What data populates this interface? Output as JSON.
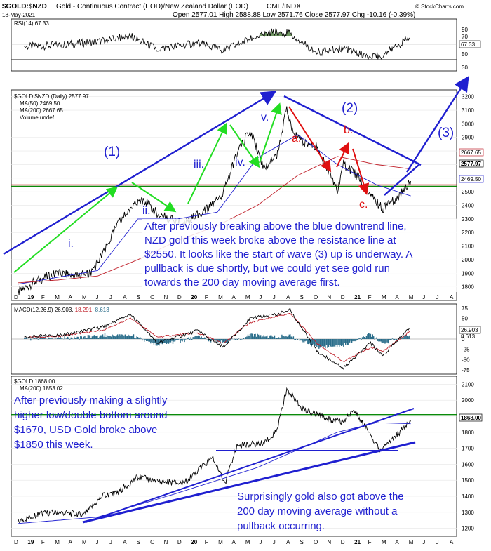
{
  "header": {
    "symbol": "$GOLD:$NZD",
    "name": "Gold - Continuous Contract (EOD)/New Zealand Dollar (EOD)",
    "exchange": "CME/INDX",
    "copyright": "© StockCharts.com",
    "date": "18-May-2021",
    "ohlc": "Open 2577.01  High 2588.88  Low 2571.76  Close 2577.97  Chg -10.16 (-0.39%)"
  },
  "rsi": {
    "label": "RSI(14) 67.33",
    "current_label": "67.33",
    "ticks": [
      "90",
      "70",
      "50",
      "30"
    ]
  },
  "main": {
    "legend_title": "$GOLD:$NZD (Daily) 2577.97",
    "legend_ma50": "MA(50) 2469.50",
    "legend_ma200": "MA(200) 2667.65",
    "legend_volume": "Volume undef",
    "ticks": [
      "3200",
      "3100",
      "3000",
      "2900",
      "2800",
      "2700",
      "2600",
      "2500",
      "2400",
      "2300",
      "2200",
      "2100",
      "2000",
      "1900",
      "1800"
    ],
    "price_labels": [
      "2667.65",
      "2577.97",
      "2469.50"
    ],
    "wave_labels": [
      "(1)",
      "(2)",
      "(3)"
    ],
    "sub_wave_labels": [
      "i.",
      "ii.",
      "iii.",
      "iv.",
      "v.",
      "a.",
      "b.",
      "c."
    ],
    "annotation": "After previously breaking above the blue downtrend line, NZD gold this week broke above the resistance line at $2550. It looks like the start of wave (3) up is underway. A pullback is due shortly, but we could yet see gold run towards the 200 day moving average first.",
    "annotation_lines": [
      "After previously breaking above the blue downtrend line,",
      "NZD gold this week broke above the resistance line at",
      "$2550. It looks like the start of wave (3) up is underway. A",
      "pullback is due shortly, but we could yet see gold run",
      "towards the 200 day moving average first."
    ]
  },
  "macd": {
    "label_prefix": "MACD(12,26,9)",
    "v1": "26.903",
    "v2": "18.291",
    "v3": "8.613",
    "ticks": [
      "75",
      "50",
      "25",
      "0",
      "-25",
      "-50",
      "-75"
    ],
    "current_labels": [
      "26.903",
      "8.613"
    ]
  },
  "usd": {
    "legend_title": "$GOLD 1868.00",
    "legend_ma200": "MA(200) 1853.02",
    "ticks": [
      "2100",
      "2000",
      "1900",
      "1800",
      "1700",
      "1600",
      "1500",
      "1400",
      "1300",
      "1200"
    ],
    "price_label": "1868.00",
    "annotation1_lines": [
      "After previously making a slightly",
      "higher low/double bottom around",
      "$1670, USD Gold broke above",
      "$1850 this week."
    ],
    "annotation2_lines": [
      "Surprisingly gold also got above the",
      "200 day moving average without a",
      "pullback occurring."
    ]
  },
  "months": [
    "D",
    "19",
    "F",
    "M",
    "A",
    "M",
    "J",
    "J",
    "A",
    "S",
    "O",
    "N",
    "D",
    "20",
    "F",
    "M",
    "A",
    "M",
    "J",
    "J",
    "A",
    "S",
    "O",
    "N",
    "D",
    "21",
    "F",
    "M",
    "A",
    "M",
    "J",
    "J",
    "A"
  ],
  "colors": {
    "price": "#000000",
    "ma50": "#1f1fd0",
    "ma200": "#c0202a",
    "resistance": "#d01818",
    "support": "#0a8a0a",
    "annotation": "#1f1fd0",
    "wave_green": "#22dd22",
    "wave_red": "#e01010",
    "macd_hist": "#2a6d8a"
  },
  "chart_data": [
    {
      "type": "line",
      "title": "RSI(14)",
      "ylim": [
        10,
        100
      ],
      "ref_lines": [
        70,
        30
      ],
      "series": [
        {
          "name": "RSI(14)",
          "x": [
            "2018-12",
            "2019-03",
            "2019-06",
            "2019-08",
            "2019-10",
            "2020-01",
            "2020-03",
            "2020-05",
            "2020-07",
            "2020-08",
            "2020-10",
            "2020-12",
            "2021-02",
            "2021-03",
            "2021-05"
          ],
          "values": [
            52,
            55,
            62,
            70,
            48,
            58,
            45,
            66,
            78,
            74,
            42,
            50,
            32,
            38,
            67.33
          ]
        }
      ]
    },
    {
      "type": "line",
      "title": "$GOLD:$NZD (Daily)",
      "ylim": [
        1700,
        3250
      ],
      "reference_lines": [
        {
          "value": 2550,
          "color": "red"
        },
        {
          "value": 2540,
          "color": "green"
        }
      ],
      "series": [
        {
          "name": "$GOLD:$NZD",
          "x": [
            "2018-12-01",
            "2019-01-15",
            "2019-03-01",
            "2019-04-15",
            "2019-05-15",
            "2019-06-15",
            "2019-07-15",
            "2019-08-15",
            "2019-09-15",
            "2019-10-15",
            "2019-11-15",
            "2019-12-15",
            "2020-01-15",
            "2020-02-15",
            "2020-03-15",
            "2020-04-15",
            "2020-05-15",
            "2020-06-15",
            "2020-07-15",
            "2020-08-07",
            "2020-08-20",
            "2020-09-15",
            "2020-10-15",
            "2020-11-15",
            "2020-12-01",
            "2020-12-15",
            "2021-01-15",
            "2021-02-15",
            "2021-03-15",
            "2021-04-15",
            "2021-05-18"
          ],
          "values": [
            1760,
            1850,
            1900,
            1880,
            1900,
            2050,
            2250,
            2380,
            2440,
            2340,
            2300,
            2260,
            2330,
            2390,
            2500,
            2780,
            2950,
            2680,
            2760,
            3120,
            2950,
            2860,
            2830,
            2620,
            2500,
            2700,
            2620,
            2470,
            2370,
            2450,
            2577.97
          ]
        },
        {
          "name": "MA(50)",
          "x": [
            "2018-12-01",
            "2019-03-01",
            "2019-06-01",
            "2019-09-01",
            "2019-12-01",
            "2020-03-01",
            "2020-06-01",
            "2020-09-01",
            "2020-12-01",
            "2021-03-01",
            "2021-05-18"
          ],
          "values": [
            1820,
            1870,
            1920,
            2300,
            2300,
            2350,
            2750,
            2920,
            2700,
            2550,
            2469.5
          ]
        },
        {
          "name": "MA(200)",
          "x": [
            "2018-12-01",
            "2019-03-01",
            "2019-06-01",
            "2019-09-01",
            "2019-12-01",
            "2020-03-01",
            "2020-06-01",
            "2020-09-01",
            "2020-12-01",
            "2021-03-01",
            "2021-05-18"
          ],
          "values": [
            1830,
            1850,
            1880,
            2000,
            2140,
            2250,
            2400,
            2620,
            2760,
            2700,
            2667.65
          ]
        }
      ]
    },
    {
      "type": "line",
      "title": "MACD(12,26,9)",
      "ylim": [
        -85,
        85
      ],
      "series": [
        {
          "name": "MACD",
          "x": [
            "2018-12",
            "2019-03",
            "2019-06",
            "2019-08",
            "2019-10",
            "2020-01",
            "2020-03",
            "2020-05",
            "2020-07",
            "2020-08",
            "2020-10",
            "2020-12",
            "2021-02",
            "2021-03",
            "2021-05"
          ],
          "values": [
            5,
            10,
            30,
            60,
            -10,
            20,
            -20,
            50,
            60,
            70,
            -30,
            -70,
            -10,
            -40,
            26.903
          ]
        },
        {
          "name": "Signal",
          "x": [
            "2018-12",
            "2019-03",
            "2019-06",
            "2019-08",
            "2019-10",
            "2020-01",
            "2020-03",
            "2020-05",
            "2020-07",
            "2020-08",
            "2020-10",
            "2020-12",
            "2021-02",
            "2021-03",
            "2021-05"
          ],
          "values": [
            3,
            8,
            22,
            50,
            5,
            15,
            -10,
            40,
            55,
            62,
            -10,
            -55,
            -20,
            -30,
            18.291
          ]
        }
      ]
    },
    {
      "type": "line",
      "title": "$GOLD",
      "ylim": [
        1150,
        2150
      ],
      "reference_lines": [
        {
          "value": 1910,
          "color": "green"
        },
        {
          "value": 1670,
          "color": "blue"
        }
      ],
      "series": [
        {
          "name": "$GOLD",
          "x": [
            "2018-12-01",
            "2019-01-15",
            "2019-03-01",
            "2019-05-01",
            "2019-06-15",
            "2019-07-15",
            "2019-09-01",
            "2019-10-15",
            "2019-12-15",
            "2020-01-15",
            "2020-02-20",
            "2020-03-19",
            "2020-04-15",
            "2020-06-15",
            "2020-07-15",
            "2020-08-07",
            "2020-09-15",
            "2020-11-15",
            "2020-12-15",
            "2021-01-06",
            "2021-02-15",
            "2021-03-08",
            "2021-04-15",
            "2021-05-18"
          ],
          "values": [
            1240,
            1290,
            1300,
            1285,
            1410,
            1420,
            1520,
            1495,
            1480,
            1560,
            1640,
            1480,
            1720,
            1730,
            1810,
            2070,
            1940,
            1880,
            1860,
            1950,
            1780,
            1690,
            1780,
            1868
          ]
        },
        {
          "name": "MA(200)",
          "x": [
            "2018-12-01",
            "2019-06-01",
            "2019-12-01",
            "2020-06-01",
            "2020-12-01",
            "2021-03-01",
            "2021-05-18"
          ],
          "values": [
            1230,
            1270,
            1420,
            1580,
            1800,
            1860,
            1853.02
          ]
        }
      ]
    }
  ]
}
